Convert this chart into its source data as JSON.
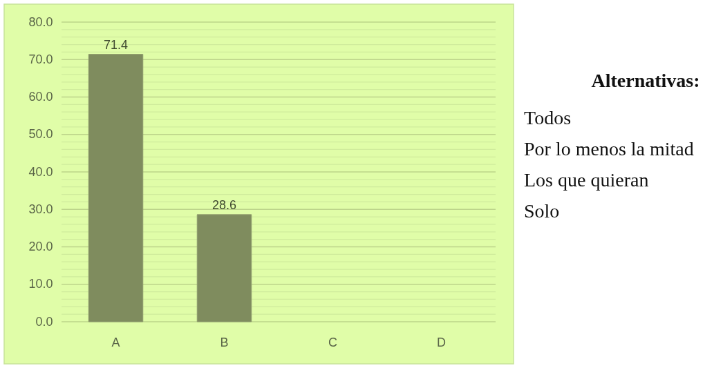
{
  "chart_data": {
    "type": "bar",
    "categories": [
      "A",
      "B",
      "C",
      "D"
    ],
    "values": [
      71.4,
      28.6,
      null,
      null
    ],
    "color": "#7f8c5e",
    "value_labels": [
      "71.4",
      "28.6",
      null,
      null
    ],
    "ylim": [
      0,
      80
    ],
    "yticks": [
      {
        "value": 0,
        "label": "0.0"
      },
      {
        "value": 2,
        "label": null
      },
      {
        "value": 4,
        "label": null
      },
      {
        "value": 6,
        "label": null
      },
      {
        "value": 8,
        "label": null
      },
      {
        "value": 10,
        "label": "10.0"
      },
      {
        "value": 12,
        "label": null
      },
      {
        "value": 14,
        "label": null
      },
      {
        "value": 16,
        "label": null
      },
      {
        "value": 18,
        "label": null
      },
      {
        "value": 20,
        "label": "20.0"
      },
      {
        "value": 22,
        "label": null
      },
      {
        "value": 24,
        "label": null
      },
      {
        "value": 26,
        "label": null
      },
      {
        "value": 28,
        "label": null
      },
      {
        "value": 30,
        "label": "30.0"
      },
      {
        "value": 32,
        "label": null
      },
      {
        "value": 34,
        "label": null
      },
      {
        "value": 36,
        "label": null
      },
      {
        "value": 38,
        "label": null
      },
      {
        "value": 40,
        "label": "40.0"
      },
      {
        "value": 42,
        "label": null
      },
      {
        "value": 44,
        "label": null
      },
      {
        "value": 46,
        "label": null
      },
      {
        "value": 48,
        "label": null
      },
      {
        "value": 50,
        "label": "50.0"
      },
      {
        "value": 52,
        "label": null
      },
      {
        "value": 54,
        "label": null
      },
      {
        "value": 56,
        "label": null
      },
      {
        "value": 58,
        "label": null
      },
      {
        "value": 60,
        "label": "60.0"
      },
      {
        "value": 62,
        "label": null
      },
      {
        "value": 64,
        "label": null
      },
      {
        "value": 66,
        "label": null
      },
      {
        "value": 68,
        "label": null
      },
      {
        "value": 70,
        "label": "70.0"
      },
      {
        "value": 72,
        "label": null
      },
      {
        "value": 74,
        "label": null
      },
      {
        "value": 76,
        "label": null
      },
      {
        "value": 78,
        "label": null
      },
      {
        "value": 80,
        "label": "80.0"
      }
    ],
    "grid": "y",
    "annotations": [
      "Alternativas:",
      "Todos",
      "Por lo menos la mitad",
      "Los que quieran",
      "Solo"
    ]
  }
}
